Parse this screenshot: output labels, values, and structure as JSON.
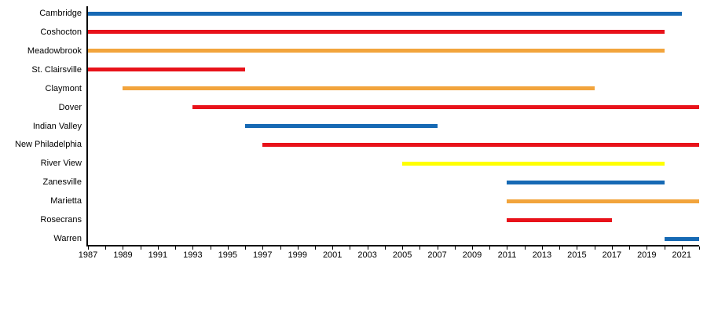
{
  "chart_data": {
    "type": "bar",
    "subtype": "gantt-timeline",
    "title": "",
    "xlabel": "",
    "ylabel": "",
    "grid": false,
    "legend": "none",
    "x_axis": {
      "min": 1987,
      "max": 2022,
      "minor_tick_interval": 1,
      "label_interval": 2,
      "tick_labels": [
        "1987",
        "1989",
        "1991",
        "1993",
        "1995",
        "1997",
        "1999",
        "2001",
        "2003",
        "2005",
        "2007",
        "2009",
        "2011",
        "2013",
        "2015",
        "2017",
        "2019",
        "2021"
      ]
    },
    "rows": [
      {
        "label": "Cambridge",
        "start": 1987,
        "end": 2021,
        "color": "blue"
      },
      {
        "label": "Coshocton",
        "start": 1987,
        "end": 2020,
        "color": "red"
      },
      {
        "label": "Meadowbrook",
        "start": 1987,
        "end": 2020,
        "color": "orange"
      },
      {
        "label": "St. Clairsville",
        "start": 1987,
        "end": 1996,
        "color": "red"
      },
      {
        "label": "Claymont",
        "start": 1989,
        "end": 2016,
        "color": "orange"
      },
      {
        "label": "Dover",
        "start": 1993,
        "end": 2022,
        "color": "red"
      },
      {
        "label": "Indian Valley",
        "start": 1996,
        "end": 2007,
        "color": "blue"
      },
      {
        "label": "New Philadelphia",
        "start": 1997,
        "end": 2022,
        "color": "red"
      },
      {
        "label": "River View",
        "start": 2005,
        "end": 2020,
        "color": "yellow"
      },
      {
        "label": "Zanesville",
        "start": 2011,
        "end": 2020,
        "color": "blue"
      },
      {
        "label": "Marietta",
        "start": 2011,
        "end": 2022,
        "color": "orange"
      },
      {
        "label": "Rosecrans",
        "start": 2011,
        "end": 2017,
        "color": "red"
      },
      {
        "label": "Warren",
        "start": 2020,
        "end": 2022,
        "color": "blue"
      }
    ],
    "colors": {
      "blue": "#1669B4",
      "red": "#E8121A",
      "orange": "#F2A43C",
      "yellow": "#FFFF00",
      "axis": "#000000",
      "text": "#000000",
      "background": "#FFFFFF"
    }
  }
}
